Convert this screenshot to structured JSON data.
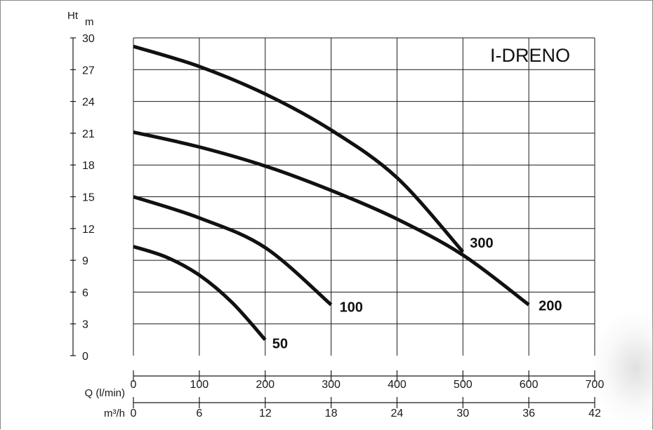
{
  "chart_data": {
    "type": "line",
    "title": "I-DRENO",
    "y_axis": {
      "label": "Ht",
      "unit": "m",
      "range": [
        0,
        30
      ],
      "ticks": [
        0,
        3,
        6,
        9,
        12,
        15,
        18,
        21,
        24,
        27,
        30
      ]
    },
    "x_axis_primary": {
      "label": "Q (l/min)",
      "range": [
        0,
        700
      ],
      "ticks": [
        0,
        100,
        200,
        300,
        400,
        500,
        600,
        700
      ]
    },
    "x_axis_secondary": {
      "label": "m³/h",
      "ticks": [
        0,
        6,
        12,
        18,
        24,
        30,
        36,
        42
      ]
    },
    "grid": true,
    "series": [
      {
        "name": "50",
        "x": [
          0,
          50,
          100,
          150,
          200
        ],
        "y": [
          10.3,
          9.3,
          7.6,
          5.0,
          1.5
        ]
      },
      {
        "name": "100",
        "x": [
          0,
          100,
          200,
          300
        ],
        "y": [
          15.0,
          13.0,
          10.2,
          4.8
        ]
      },
      {
        "name": "300",
        "x": [
          0,
          100,
          200,
          300,
          400,
          500
        ],
        "y": [
          29.2,
          27.3,
          24.7,
          21.3,
          16.8,
          9.8
        ]
      },
      {
        "name": "200",
        "x": [
          0,
          100,
          200,
          300,
          400,
          500,
          600
        ],
        "y": [
          21.1,
          19.7,
          17.9,
          15.6,
          12.9,
          9.5,
          4.8
        ]
      }
    ]
  }
}
